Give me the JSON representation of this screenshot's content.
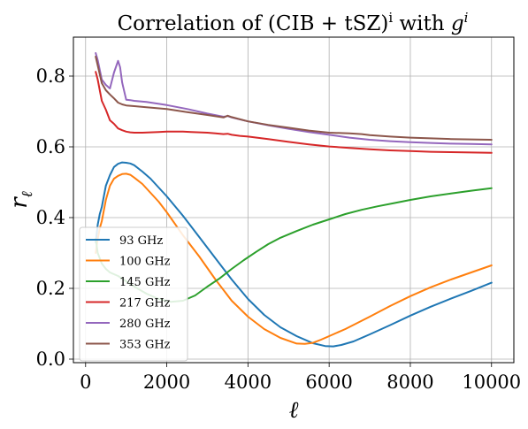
{
  "chart_data": {
    "type": "line",
    "title_parts": {
      "prefix": "Correlation of (CIB + tSZ)",
      "sup1": "i",
      "middle": " with ",
      "var": "g",
      "sup2": "i"
    },
    "xlabel": "ℓ",
    "ylabel_main": "r",
    "ylabel_sub": "ℓ",
    "xlim": [
      -300,
      10550
    ],
    "ylim": [
      -0.01,
      0.91
    ],
    "xticks": [
      0,
      2000,
      4000,
      6000,
      8000,
      10000
    ],
    "xtick_labels": [
      "0",
      "2000",
      "4000",
      "6000",
      "8000",
      "10000"
    ],
    "yticks": [
      0.0,
      0.2,
      0.4,
      0.6,
      0.8
    ],
    "ytick_labels": [
      "0.0",
      "0.2",
      "0.4",
      "0.6",
      "0.8"
    ],
    "grid": true,
    "legend_position": "lower-left",
    "series": [
      {
        "name": "93 GHz",
        "color": "#1f77b4",
        "x": [
          250,
          300,
          350,
          400,
          500,
          600,
          700,
          800,
          900,
          1000,
          1100,
          1200,
          1400,
          1600,
          1800,
          2000,
          2400,
          2800,
          3200,
          3600,
          4000,
          4400,
          4800,
          5200,
          5600,
          5900,
          6100,
          6300,
          6600,
          7000,
          7500,
          8000,
          8500,
          9000,
          9500,
          10000
        ],
        "y": [
          0.33,
          0.38,
          0.41,
          0.43,
          0.49,
          0.52,
          0.543,
          0.552,
          0.556,
          0.555,
          0.553,
          0.548,
          0.53,
          0.51,
          0.485,
          0.46,
          0.405,
          0.345,
          0.285,
          0.225,
          0.17,
          0.125,
          0.09,
          0.065,
          0.045,
          0.037,
          0.036,
          0.04,
          0.05,
          0.07,
          0.096,
          0.123,
          0.148,
          0.171,
          0.193,
          0.216
        ]
      },
      {
        "name": "100 GHz",
        "color": "#ff7f0e",
        "x": [
          250,
          300,
          350,
          400,
          500,
          600,
          700,
          800,
          900,
          1000,
          1100,
          1200,
          1400,
          1600,
          1800,
          2000,
          2400,
          2800,
          3200,
          3600,
          4000,
          4400,
          4800,
          5200,
          5400,
          5600,
          5800,
          6000,
          6400,
          7000,
          7500,
          8000,
          8500,
          9000,
          9500,
          10000
        ],
        "y": [
          0.3,
          0.34,
          0.37,
          0.39,
          0.45,
          0.49,
          0.51,
          0.518,
          0.523,
          0.524,
          0.521,
          0.513,
          0.495,
          0.47,
          0.445,
          0.415,
          0.35,
          0.29,
          0.225,
          0.165,
          0.12,
          0.085,
          0.06,
          0.044,
          0.043,
          0.046,
          0.055,
          0.065,
          0.085,
          0.12,
          0.15,
          0.178,
          0.203,
          0.225,
          0.245,
          0.265
        ]
      },
      {
        "name": "145 GHz",
        "color": "#2ca02c",
        "x": [
          250,
          300,
          400,
          500,
          600,
          800,
          1000,
          1200,
          1500,
          1800,
          2100,
          2400,
          2700,
          3000,
          3300,
          3600,
          3900,
          4200,
          4500,
          4800,
          5200,
          5600,
          6000,
          6400,
          6800,
          7200,
          7600,
          8000,
          8500,
          9000,
          9500,
          10000
        ],
        "y": [
          0.34,
          0.3,
          0.27,
          0.255,
          0.245,
          0.235,
          0.22,
          0.205,
          0.185,
          0.17,
          0.162,
          0.165,
          0.18,
          0.205,
          0.228,
          0.255,
          0.28,
          0.303,
          0.325,
          0.343,
          0.362,
          0.38,
          0.395,
          0.41,
          0.422,
          0.432,
          0.441,
          0.45,
          0.46,
          0.468,
          0.476,
          0.483
        ]
      },
      {
        "name": "217 GHz",
        "color": "#d62728",
        "x": [
          250,
          300,
          400,
          500,
          600,
          700,
          800,
          900,
          1000,
          1100,
          1200,
          1400,
          1600,
          1800,
          2000,
          2200,
          2400,
          2600,
          2800,
          3000,
          3200,
          3400,
          3500,
          3600,
          3800,
          4000,
          4500,
          5000,
          5500,
          6000,
          6500,
          7000,
          7500,
          8000,
          8500,
          9000,
          9500,
          10000
        ],
        "y": [
          0.812,
          0.79,
          0.73,
          0.705,
          0.675,
          0.665,
          0.652,
          0.647,
          0.643,
          0.641,
          0.64,
          0.64,
          0.641,
          0.642,
          0.643,
          0.643,
          0.643,
          0.642,
          0.641,
          0.64,
          0.638,
          0.636,
          0.637,
          0.634,
          0.631,
          0.629,
          0.622,
          0.614,
          0.607,
          0.601,
          0.597,
          0.593,
          0.59,
          0.588,
          0.586,
          0.585,
          0.584,
          0.583
        ]
      },
      {
        "name": "280 GHz",
        "color": "#9467bd",
        "x": [
          250,
          300,
          400,
          500,
          600,
          700,
          800,
          850,
          900,
          1000,
          1100,
          1200,
          1500,
          2000,
          2500,
          3000,
          3400,
          3500,
          3600,
          4000,
          4500,
          5000,
          5500,
          6000,
          6500,
          7000,
          7500,
          8000,
          8500,
          9000,
          9500,
          10000
        ],
        "y": [
          0.865,
          0.845,
          0.79,
          0.775,
          0.765,
          0.81,
          0.843,
          0.825,
          0.782,
          0.733,
          0.732,
          0.73,
          0.727,
          0.718,
          0.707,
          0.694,
          0.685,
          0.687,
          0.683,
          0.672,
          0.661,
          0.651,
          0.642,
          0.634,
          0.626,
          0.62,
          0.616,
          0.613,
          0.611,
          0.609,
          0.608,
          0.607
        ]
      },
      {
        "name": "353 GHz",
        "color": "#8c564b",
        "x": [
          250,
          300,
          400,
          500,
          600,
          700,
          800,
          900,
          1000,
          1200,
          1500,
          2000,
          2500,
          3000,
          3400,
          3500,
          3600,
          4000,
          4500,
          5000,
          5500,
          6000,
          6500,
          6800,
          7000,
          7500,
          8000,
          8500,
          9000,
          9500,
          10000
        ],
        "y": [
          0.855,
          0.83,
          0.78,
          0.76,
          0.748,
          0.737,
          0.725,
          0.72,
          0.717,
          0.715,
          0.712,
          0.707,
          0.698,
          0.69,
          0.683,
          0.688,
          0.684,
          0.672,
          0.662,
          0.654,
          0.646,
          0.64,
          0.638,
          0.636,
          0.633,
          0.629,
          0.626,
          0.624,
          0.622,
          0.621,
          0.62
        ]
      }
    ]
  }
}
